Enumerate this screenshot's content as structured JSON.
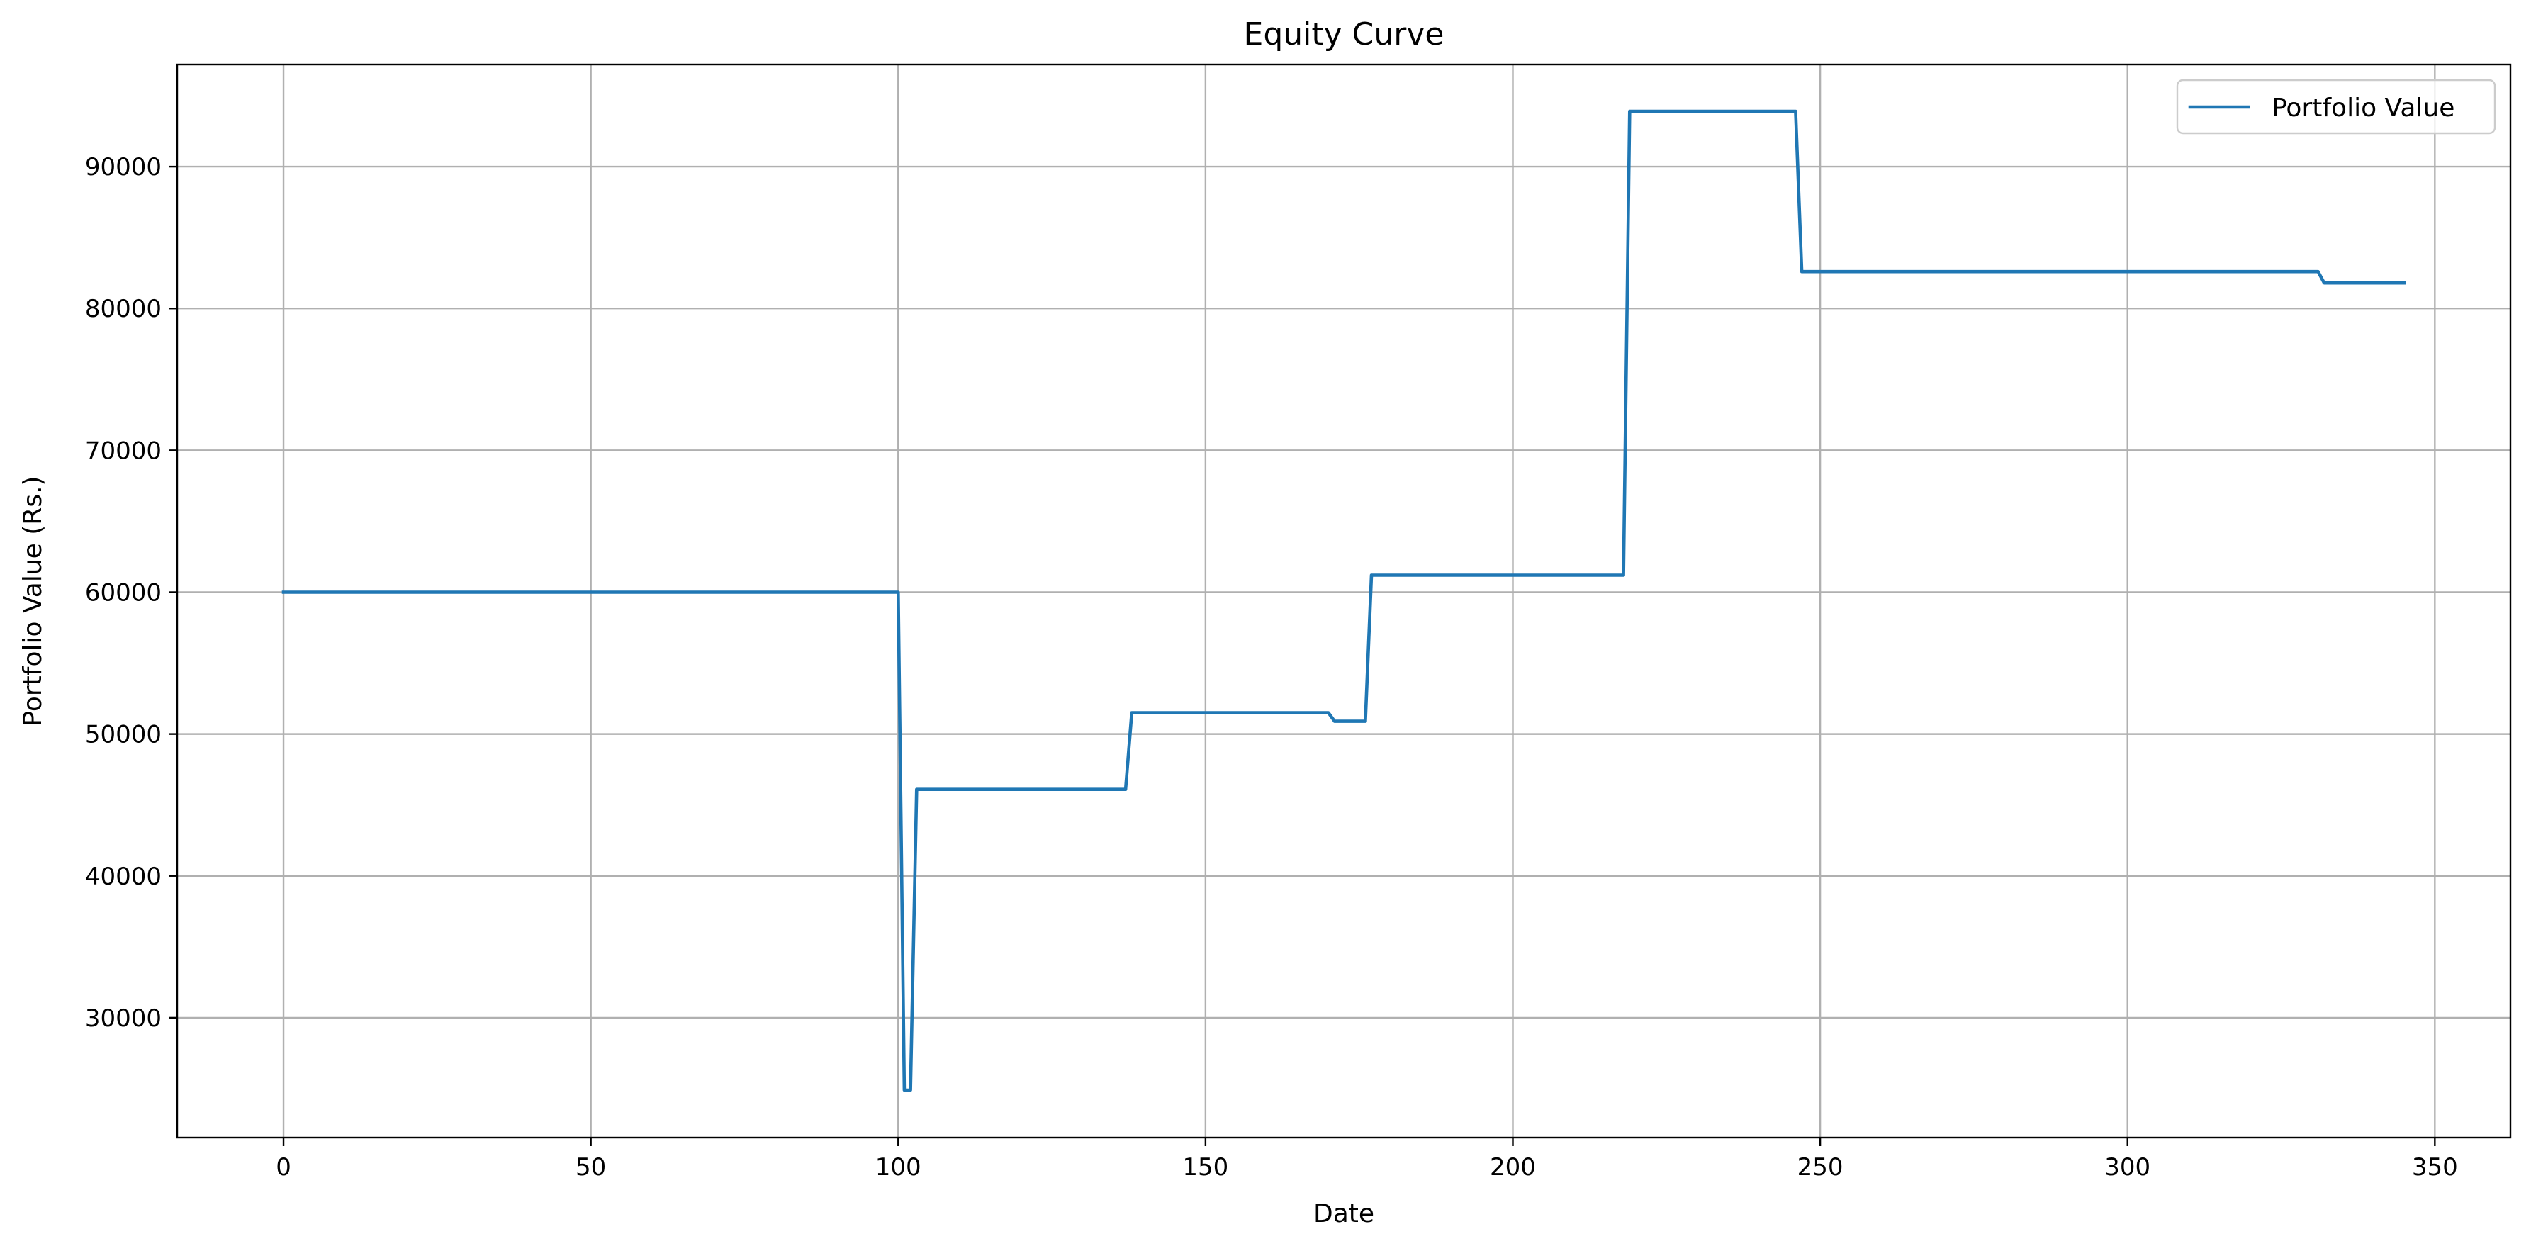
{
  "chart_data": {
    "type": "line",
    "title": "Equity Curve",
    "xlabel": "Date",
    "ylabel": "Portfolio Value (Rs.)",
    "xlim": [
      -17.3,
      362.3
    ],
    "ylim": [
      21550,
      97200
    ],
    "xticks": [
      0,
      50,
      100,
      150,
      200,
      250,
      300,
      350
    ],
    "yticks": [
      30000,
      40000,
      50000,
      60000,
      70000,
      80000,
      90000
    ],
    "grid": true,
    "legend_position": "top-right",
    "series": [
      {
        "name": "Portfolio Value",
        "color": "#1f77b4",
        "x": [
          0,
          100,
          101,
          102,
          103,
          137,
          138,
          170,
          171,
          176,
          177,
          218,
          219,
          246,
          247,
          331,
          332,
          345
        ],
        "y": [
          60000,
          60000,
          24900,
          24900,
          46100,
          46100,
          51500,
          51500,
          50900,
          50900,
          61200,
          61200,
          93900,
          93900,
          82600,
          82600,
          81800,
          81800
        ]
      }
    ]
  }
}
